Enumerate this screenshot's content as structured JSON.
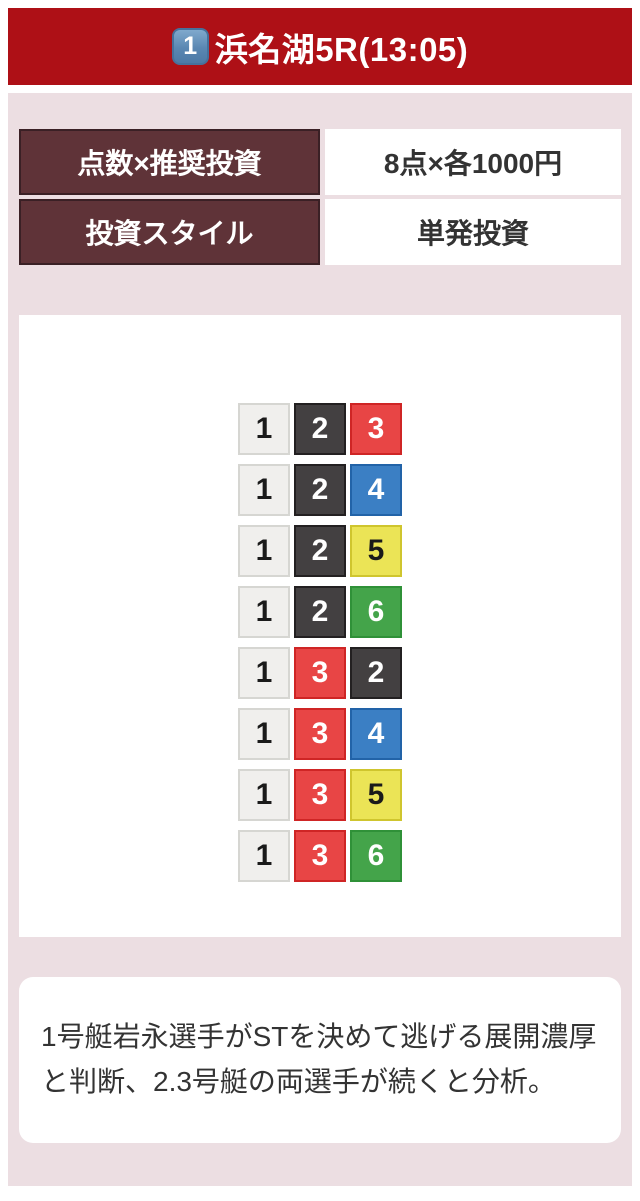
{
  "header": {
    "race_number_badge": "1",
    "title": "浜名湖5R(13:05)"
  },
  "info_table": {
    "rows": [
      {
        "label": "点数×推奨投資",
        "value": "8点×各1000円"
      },
      {
        "label": "投資スタイル",
        "value": "単発投資"
      }
    ]
  },
  "bets": {
    "combinations": [
      [
        1,
        2,
        3
      ],
      [
        1,
        2,
        4
      ],
      [
        1,
        2,
        5
      ],
      [
        1,
        2,
        6
      ],
      [
        1,
        3,
        2
      ],
      [
        1,
        3,
        4
      ],
      [
        1,
        3,
        5
      ],
      [
        1,
        3,
        6
      ]
    ]
  },
  "boat_colors": {
    "1": {
      "bg": "#f0efed",
      "border": "#d6d6d2",
      "text": "#1a1a1a"
    },
    "2": {
      "bg": "#434041",
      "border": "#232021",
      "text": "#ffffff"
    },
    "3": {
      "bg": "#e84545",
      "border": "#cf2525",
      "text": "#ffffff"
    },
    "4": {
      "bg": "#3b7fc4",
      "border": "#2263a8",
      "text": "#ffffff"
    },
    "5": {
      "bg": "#ebe456",
      "border": "#cfc52e",
      "text": "#1a1a1a"
    },
    "6": {
      "bg": "#44a44a",
      "border": "#2f9138",
      "text": "#ffffff"
    }
  },
  "analysis": {
    "text": "1号艇岩永選手がSTを決めて逃げる展開濃厚と判断、2.3号艇の両選手が続くと分析。"
  },
  "colors": {
    "header_bg": "#ae1016",
    "panel_bg": "#ecdee2",
    "label_bg": "#5f3338",
    "badge_bg": "#5a87b2"
  }
}
